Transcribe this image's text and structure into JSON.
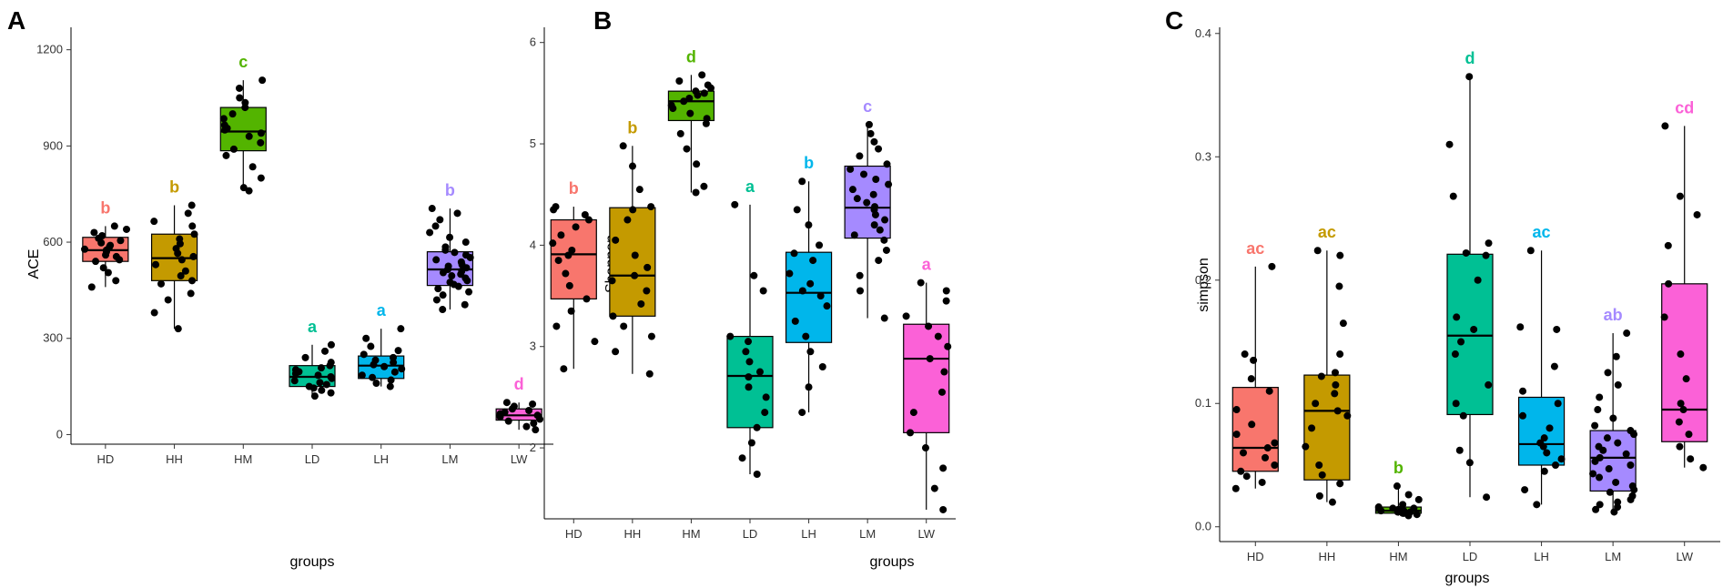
{
  "figure": {
    "group_colors": {
      "HD": "#F8766D",
      "HH": "#C49A00",
      "HM": "#53B400",
      "LD": "#00C094",
      "LH": "#00B6EB",
      "LM": "#A58AFF",
      "LW": "#FB61D7"
    }
  },
  "chart_data": [
    {
      "type": "box",
      "panel": "A",
      "title": "",
      "xlabel": "groups",
      "ylabel": "ACE",
      "ylim": [
        -30,
        1270
      ],
      "yticks": [
        0,
        300,
        600,
        900,
        1200
      ],
      "categories": [
        "HD",
        "HH",
        "HM",
        "LD",
        "LH",
        "LM",
        "LW"
      ],
      "boxes": [
        {
          "group": "HD",
          "min": 460,
          "q1": 540,
          "median": 575,
          "q3": 615,
          "max": 650,
          "label": "b"
        },
        {
          "group": "HH",
          "min": 330,
          "q1": 480,
          "median": 550,
          "q3": 625,
          "max": 715,
          "label": "b"
        },
        {
          "group": "HM",
          "min": 760,
          "q1": 885,
          "median": 945,
          "q3": 1020,
          "max": 1105,
          "label": "c"
        },
        {
          "group": "LD",
          "min": 120,
          "q1": 150,
          "median": 180,
          "q3": 215,
          "max": 280,
          "label": "a"
        },
        {
          "group": "LH",
          "min": 150,
          "q1": 175,
          "median": 215,
          "q3": 245,
          "max": 330,
          "label": "a"
        },
        {
          "group": "LM",
          "min": 390,
          "q1": 465,
          "median": 515,
          "q3": 570,
          "max": 705,
          "label": "b"
        },
        {
          "group": "LW",
          "min": 15,
          "q1": 45,
          "median": 60,
          "q3": 80,
          "max": 100,
          "label": "d"
        }
      ],
      "points": {
        "HD": [
          460,
          480,
          505,
          520,
          540,
          545,
          555,
          560,
          570,
          575,
          578,
          585,
          590,
          598,
          605,
          612,
          620,
          630,
          640,
          650
        ],
        "HH": [
          330,
          380,
          420,
          440,
          470,
          480,
          495,
          510,
          530,
          545,
          555,
          565,
          580,
          595,
          610,
          625,
          650,
          665,
          690,
          715
        ],
        "HM": [
          760,
          770,
          800,
          835,
          870,
          890,
          910,
          930,
          940,
          950,
          955,
          965,
          985,
          1000,
          1020,
          1035,
          1050,
          1080,
          1105
        ],
        "LD": [
          120,
          130,
          138,
          145,
          150,
          156,
          162,
          168,
          175,
          180,
          185,
          190,
          196,
          202,
          208,
          215,
          225,
          240,
          260,
          280
        ],
        "LH": [
          150,
          160,
          170,
          178,
          185,
          195,
          205,
          212,
          218,
          225,
          232,
          240,
          250,
          262,
          275,
          300,
          330
        ],
        "LM": [
          390,
          405,
          420,
          435,
          445,
          455,
          462,
          468,
          475,
          480,
          488,
          495,
          500,
          505,
          510,
          515,
          520,
          525,
          530,
          538,
          545,
          552,
          560,
          568,
          575,
          585,
          600,
          615,
          630,
          650,
          670,
          690,
          705
        ],
        "LW": [
          15,
          25,
          35,
          42,
          48,
          55,
          60,
          65,
          70,
          75,
          80,
          88,
          95,
          100
        ]
      }
    },
    {
      "type": "box",
      "panel": "B",
      "title": "",
      "xlabel": "groups",
      "ylabel": "Shannon",
      "ylim": [
        1.3,
        6.15
      ],
      "yticks": [
        2,
        3,
        4,
        5,
        6
      ],
      "categories": [
        "HD",
        "HH",
        "HM",
        "LD",
        "LH",
        "LM",
        "LW"
      ],
      "boxes": [
        {
          "group": "HD",
          "min": 2.78,
          "q1": 3.47,
          "median": 3.91,
          "q3": 4.25,
          "max": 4.38,
          "label": "b"
        },
        {
          "group": "HH",
          "min": 2.73,
          "q1": 3.3,
          "median": 3.7,
          "q3": 4.37,
          "max": 4.98,
          "label": "b"
        },
        {
          "group": "HM",
          "min": 4.52,
          "q1": 5.23,
          "median": 5.42,
          "q3": 5.52,
          "max": 5.68,
          "label": "d"
        },
        {
          "group": "LD",
          "min": 1.74,
          "q1": 2.2,
          "median": 2.71,
          "q3": 3.1,
          "max": 4.4,
          "label": "a"
        },
        {
          "group": "LH",
          "min": 2.35,
          "q1": 3.04,
          "median": 3.53,
          "q3": 3.93,
          "max": 4.63,
          "label": "b"
        },
        {
          "group": "LM",
          "min": 3.28,
          "q1": 4.07,
          "median": 4.37,
          "q3": 4.78,
          "max": 5.19,
          "label": "c"
        },
        {
          "group": "LW",
          "min": 1.39,
          "q1": 2.15,
          "median": 2.88,
          "q3": 3.22,
          "max": 3.63,
          "label": "a"
        }
      ],
      "points": {
        "HD": [
          2.78,
          3.05,
          3.2,
          3.35,
          3.47,
          3.6,
          3.72,
          3.85,
          3.9,
          3.95,
          4.02,
          4.1,
          4.18,
          4.25,
          4.3,
          4.35,
          4.38
        ],
        "HH": [
          2.73,
          2.95,
          3.1,
          3.2,
          3.3,
          3.42,
          3.55,
          3.65,
          3.7,
          3.78,
          3.9,
          4.05,
          4.25,
          4.35,
          4.38,
          4.55,
          4.78,
          4.98
        ],
        "HM": [
          4.52,
          4.58,
          4.8,
          4.95,
          5.1,
          5.2,
          5.25,
          5.3,
          5.35,
          5.38,
          5.42,
          5.45,
          5.48,
          5.5,
          5.52,
          5.55,
          5.58,
          5.62,
          5.68
        ],
        "LD": [
          1.74,
          1.9,
          2.05,
          2.2,
          2.35,
          2.5,
          2.6,
          2.7,
          2.75,
          2.85,
          2.95,
          3.05,
          3.1,
          3.55,
          3.7,
          4.4
        ],
        "LH": [
          2.35,
          2.6,
          2.8,
          2.95,
          3.1,
          3.25,
          3.4,
          3.5,
          3.55,
          3.62,
          3.72,
          3.85,
          3.92,
          4.0,
          4.2,
          4.35,
          4.63
        ],
        "LM": [
          3.28,
          3.55,
          3.7,
          3.85,
          3.95,
          4.05,
          4.1,
          4.15,
          4.2,
          4.25,
          4.3,
          4.35,
          4.38,
          4.42,
          4.46,
          4.5,
          4.55,
          4.6,
          4.65,
          4.7,
          4.75,
          4.8,
          4.88,
          4.95,
          5.02,
          5.1,
          5.19
        ],
        "LW": [
          1.39,
          1.6,
          1.8,
          2.0,
          2.15,
          2.35,
          2.55,
          2.75,
          2.88,
          3.0,
          3.1,
          3.2,
          3.3,
          3.45,
          3.55,
          3.63
        ]
      }
    },
    {
      "type": "box",
      "panel": "C",
      "title": "",
      "xlabel": "groups",
      "ylabel": "simpson",
      "ylim": [
        -0.012,
        0.405
      ],
      "yticks": [
        0.0,
        0.1,
        0.2,
        0.3,
        0.4
      ],
      "categories": [
        "HD",
        "HH",
        "HM",
        "LD",
        "LH",
        "LM",
        "LW"
      ],
      "boxes": [
        {
          "group": "HD",
          "min": 0.031,
          "q1": 0.045,
          "median": 0.064,
          "q3": 0.113,
          "max": 0.211,
          "label": "ac"
        },
        {
          "group": "HH",
          "min": 0.02,
          "q1": 0.038,
          "median": 0.094,
          "q3": 0.123,
          "max": 0.224,
          "label": "ac"
        },
        {
          "group": "HM",
          "min": 0.009,
          "q1": 0.011,
          "median": 0.013,
          "q3": 0.016,
          "max": 0.033,
          "label": "b"
        },
        {
          "group": "LD",
          "min": 0.024,
          "q1": 0.091,
          "median": 0.155,
          "q3": 0.221,
          "max": 0.365,
          "label": "d"
        },
        {
          "group": "LH",
          "min": 0.018,
          "q1": 0.05,
          "median": 0.067,
          "q3": 0.105,
          "max": 0.224,
          "label": "ac"
        },
        {
          "group": "LM",
          "min": 0.012,
          "q1": 0.029,
          "median": 0.056,
          "q3": 0.078,
          "max": 0.157,
          "label": "ab"
        },
        {
          "group": "LW",
          "min": 0.048,
          "q1": 0.069,
          "median": 0.095,
          "q3": 0.197,
          "max": 0.325,
          "label": "cd"
        }
      ],
      "points": {
        "HD": [
          0.031,
          0.036,
          0.041,
          0.045,
          0.05,
          0.056,
          0.06,
          0.064,
          0.068,
          0.075,
          0.083,
          0.095,
          0.11,
          0.12,
          0.135,
          0.14,
          0.211
        ],
        "HH": [
          0.02,
          0.025,
          0.035,
          0.042,
          0.05,
          0.065,
          0.08,
          0.09,
          0.094,
          0.1,
          0.108,
          0.115,
          0.122,
          0.125,
          0.14,
          0.165,
          0.195,
          0.22,
          0.224
        ],
        "HM": [
          0.009,
          0.01,
          0.011,
          0.011,
          0.012,
          0.012,
          0.013,
          0.013,
          0.014,
          0.015,
          0.015,
          0.016,
          0.018,
          0.022,
          0.026,
          0.033
        ],
        "LD": [
          0.024,
          0.052,
          0.062,
          0.09,
          0.1,
          0.115,
          0.14,
          0.15,
          0.16,
          0.17,
          0.2,
          0.22,
          0.222,
          0.23,
          0.268,
          0.31,
          0.365
        ],
        "LH": [
          0.018,
          0.03,
          0.045,
          0.05,
          0.055,
          0.06,
          0.065,
          0.068,
          0.072,
          0.08,
          0.09,
          0.1,
          0.11,
          0.13,
          0.16,
          0.162,
          0.224
        ],
        "LM": [
          0.012,
          0.014,
          0.016,
          0.018,
          0.02,
          0.022,
          0.025,
          0.028,
          0.03,
          0.033,
          0.036,
          0.04,
          0.043,
          0.047,
          0.05,
          0.053,
          0.056,
          0.059,
          0.062,
          0.065,
          0.068,
          0.072,
          0.075,
          0.078,
          0.082,
          0.088,
          0.095,
          0.105,
          0.115,
          0.125,
          0.138,
          0.157
        ],
        "LW": [
          0.048,
          0.055,
          0.065,
          0.075,
          0.085,
          0.095,
          0.1,
          0.12,
          0.14,
          0.17,
          0.197,
          0.228,
          0.253,
          0.268,
          0.325
        ]
      }
    }
  ]
}
